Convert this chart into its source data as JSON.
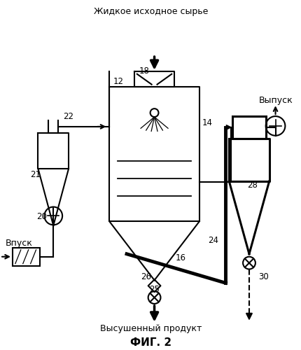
{
  "title": "ФИГ. 2",
  "top_label": "Жидкое исходное сырье",
  "bottom_label": "Высушенный продукт",
  "inlet_label": "Впуск",
  "outlet_label": "Выпуск",
  "bg_color": "#ffffff",
  "line_color": "#000000"
}
